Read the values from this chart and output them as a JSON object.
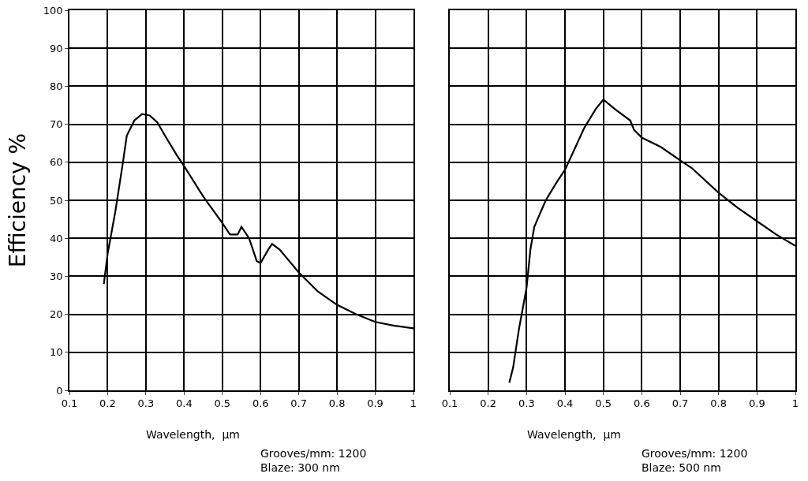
{
  "chart_data": [
    {
      "type": "line",
      "xlabel": "Wavelength,  µm",
      "ylabel": "Efficiency %",
      "annotations": [
        "Grooves/mm: 1200",
        "Blaze: 300 nm"
      ],
      "x": [
        0.19,
        0.2,
        0.22,
        0.24,
        0.25,
        0.27,
        0.29,
        0.31,
        0.33,
        0.35,
        0.38,
        0.4,
        0.45,
        0.5,
        0.52,
        0.54,
        0.55,
        0.57,
        0.59,
        0.6,
        0.62,
        0.63,
        0.65,
        0.7,
        0.75,
        0.8,
        0.85,
        0.9,
        0.95,
        1.0
      ],
      "series": [
        {
          "color": "#000000",
          "values": [
            28,
            36,
            47,
            60,
            67,
            71,
            72.7,
            72.3,
            70.5,
            67,
            62,
            59,
            51,
            44,
            41,
            41,
            43,
            40,
            34,
            33.5,
            37,
            38.5,
            37,
            31,
            26,
            22.5,
            20,
            18,
            17,
            16.3
          ]
        }
      ],
      "xlim": [
        0.1,
        1
      ],
      "xticks": [
        0.1,
        0.2,
        0.3,
        0.4,
        0.5,
        0.6,
        0.7,
        0.8,
        0.9,
        1
      ],
      "ylim": [
        0,
        100
      ],
      "yticks": [
        0,
        10,
        20,
        30,
        40,
        50,
        60,
        70,
        80,
        90,
        100
      ],
      "grid": true,
      "marker": "none",
      "line_style": "solid"
    },
    {
      "type": "line",
      "xlabel": "Wavelength,  µm",
      "annotations": [
        "Grooves/mm: 1200",
        "Blaze: 500 nm"
      ],
      "x": [
        0.255,
        0.265,
        0.28,
        0.3,
        0.31,
        0.32,
        0.35,
        0.38,
        0.4,
        0.45,
        0.48,
        0.5,
        0.53,
        0.57,
        0.58,
        0.6,
        0.65,
        0.7,
        0.73,
        0.8,
        0.85,
        0.9,
        0.95,
        1.0
      ],
      "series": [
        {
          "color": "#000000",
          "values": [
            2,
            6,
            16,
            27,
            37,
            43,
            50,
            55,
            58,
            69,
            74,
            76.5,
            74,
            71,
            68.5,
            66.5,
            64,
            60.5,
            58.5,
            52,
            48,
            44.5,
            41,
            38
          ]
        }
      ],
      "xlim": [
        0.1,
        1
      ],
      "xticks": [
        0.1,
        0.2,
        0.3,
        0.4,
        0.5,
        0.6,
        0.7,
        0.8,
        0.9,
        1
      ],
      "ylim": [
        0,
        100
      ],
      "yticks": [
        0,
        10,
        20,
        30,
        40,
        50,
        60,
        70,
        80,
        90,
        100
      ],
      "grid": true,
      "marker": "none",
      "line_style": "solid",
      "tick_labels": "x"
    }
  ]
}
